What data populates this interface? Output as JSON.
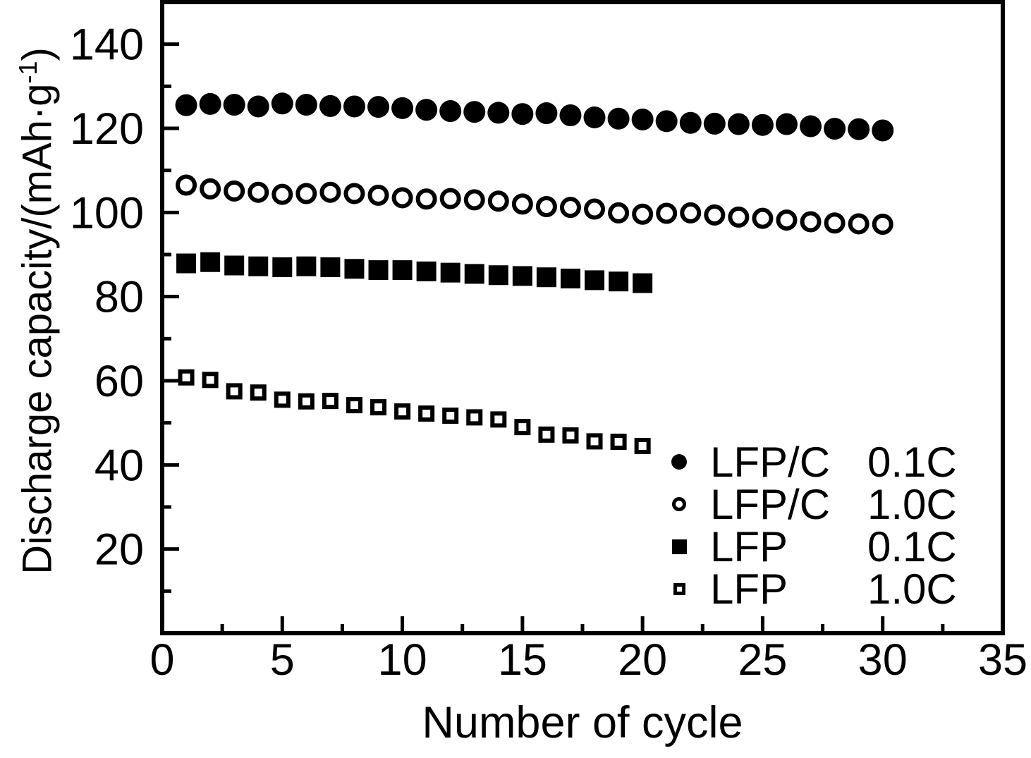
{
  "chart_data": {
    "type": "scatter",
    "title": "",
    "xlabel": "Number of cycle",
    "ylabel": "Discharge capacity/(mAh·g⁻¹)",
    "ylabel_main": "Discharge capacity/(mAh·g",
    "ylabel_sup": "-1",
    "ylabel_close": ")",
    "xlim": [
      0,
      35
    ],
    "ylim": [
      0,
      150
    ],
    "x_major_ticks": [
      0,
      5,
      10,
      15,
      20,
      25,
      30,
      35
    ],
    "x_minor_ticks": [
      2.5,
      7.5,
      12.5,
      17.5,
      22.5,
      27.5,
      32.5
    ],
    "y_major_ticks": [
      20,
      40,
      60,
      80,
      100,
      120,
      140
    ],
    "y_minor_ticks": [
      10,
      30,
      50,
      70,
      90,
      110,
      130
    ],
    "grid": false,
    "legend_position": "inside lower right",
    "colors": {
      "foreground": "#000000",
      "background": "#ffffff"
    },
    "series": [
      {
        "name": "LFP/C 0.1C",
        "marker": "circle",
        "fill": "filled",
        "x": [
          1,
          2,
          3,
          4,
          5,
          6,
          7,
          8,
          9,
          10,
          11,
          12,
          13,
          14,
          15,
          16,
          17,
          18,
          19,
          20,
          21,
          22,
          23,
          24,
          25,
          26,
          27,
          28,
          29,
          30
        ],
        "y": [
          125.5,
          125.8,
          125.6,
          125.2,
          125.9,
          125.6,
          125.3,
          125.2,
          125.1,
          124.8,
          124.4,
          124.1,
          123.9,
          123.7,
          123.4,
          123.6,
          123.1,
          122.6,
          122.3,
          122.1,
          121.7,
          121.3,
          121.1,
          121.0,
          120.8,
          121.0,
          120.5,
          119.9,
          119.8,
          119.5
        ]
      },
      {
        "name": "LFP/C 1.0C",
        "marker": "circle",
        "fill": "open",
        "x": [
          1,
          2,
          3,
          4,
          5,
          6,
          7,
          8,
          9,
          10,
          11,
          12,
          13,
          14,
          15,
          16,
          17,
          18,
          19,
          20,
          21,
          22,
          23,
          24,
          25,
          26,
          27,
          28,
          29,
          30
        ],
        "y": [
          106.5,
          105.6,
          105.1,
          104.8,
          104.3,
          104.5,
          104.8,
          104.5,
          104.1,
          103.5,
          103.2,
          103.3,
          103.0,
          102.7,
          102.0,
          101.4,
          101.2,
          100.8,
          99.9,
          99.6,
          99.8,
          99.9,
          99.4,
          98.9,
          98.6,
          98.2,
          97.8,
          97.5,
          97.3,
          97.2
        ]
      },
      {
        "name": "LFP 0.1C",
        "marker": "square",
        "fill": "filled",
        "x": [
          1,
          2,
          3,
          4,
          5,
          6,
          7,
          8,
          9,
          10,
          11,
          12,
          13,
          14,
          15,
          16,
          17,
          18,
          19,
          20
        ],
        "y": [
          87.9,
          88.2,
          87.4,
          87.2,
          87.0,
          87.2,
          87.0,
          86.6,
          86.3,
          86.3,
          86.0,
          85.7,
          85.4,
          85.1,
          84.9,
          84.6,
          84.3,
          83.9,
          83.6,
          83.2
        ]
      },
      {
        "name": "LFP 1.0C",
        "marker": "square",
        "fill": "open",
        "x": [
          1,
          2,
          3,
          4,
          5,
          6,
          7,
          8,
          9,
          10,
          11,
          12,
          13,
          14,
          15,
          16,
          17,
          18,
          19,
          20
        ],
        "y": [
          60.8,
          60.2,
          57.5,
          57.2,
          55.5,
          55.1,
          55.2,
          54.2,
          53.7,
          52.7,
          52.2,
          51.7,
          51.3,
          50.8,
          49.0,
          47.2,
          47.0,
          45.6,
          45.5,
          44.5
        ]
      }
    ],
    "legend": [
      {
        "marker": "circle-filled",
        "material": "LFP/C",
        "rate": "0.1C"
      },
      {
        "marker": "circle-open",
        "material": "LFP/C",
        "rate": "1.0C"
      },
      {
        "marker": "square-filled",
        "material": "LFP",
        "rate": "0.1C"
      },
      {
        "marker": "square-open",
        "material": "LFP",
        "rate": "1.0C"
      }
    ]
  }
}
